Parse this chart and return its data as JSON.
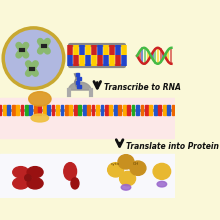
{
  "bg_cream": "#faf8d8",
  "bg_pink": "#fce8e8",
  "bg_white": "#f8f8fc",
  "circle_fill": "#b0b8e0",
  "circle_edge": "#c8a830",
  "chrom_fill": "#8ab870",
  "chrom_stripe": "#2a5a10",
  "chrom_band": "#222222",
  "dna_backbone": "#aaaaaa",
  "dna_red": "#cc2222",
  "dna_blue": "#2244cc",
  "dna_yellow": "#ffcc00",
  "dna_gray": "#888888",
  "rna_backbone": "#888888",
  "rna_red": "#dd2222",
  "rna_blue": "#2255cc",
  "rna_yellow": "#ffaa00",
  "rna_orange": "#ee6600",
  "rna_green": "#22aa22",
  "ribosome_color": "#dd9922",
  "ribosome_light": "#f0c040",
  "arrow_color": "#111111",
  "text_color": "#111111",
  "helix_red": "#cc2222",
  "helix_green": "#44bb44",
  "helix_yellow": "#ffcc00",
  "helix_blue": "#2244cc",
  "protein_red": "#bb2222",
  "protein_dark": "#991111",
  "gold_light": "#e8b830",
  "gold_dark": "#c89020",
  "purple": "#9966cc",
  "text_transcribe": "Transcribe to RNA",
  "text_translate": "Translate into Prote",
  "polymerase_color": "#999999",
  "poly_gray": "#aaaaaa"
}
